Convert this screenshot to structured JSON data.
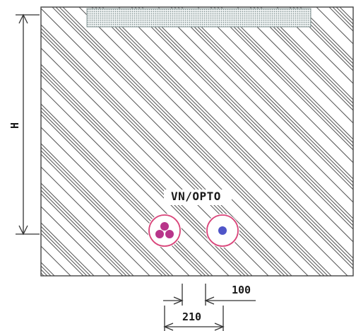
{
  "diagram": {
    "height_label": "H",
    "cable_group_label": "VN/OPTO",
    "dim_offset_label": "100",
    "dim_spacing_label": "210"
  },
  "colors": {
    "line": "#444444",
    "hatch": "#555555",
    "tape": "#8a9a9a",
    "duct_ring": "#d9457a",
    "cable_bundle": "#b8358a",
    "fiber_core": "#4f55c8"
  }
}
